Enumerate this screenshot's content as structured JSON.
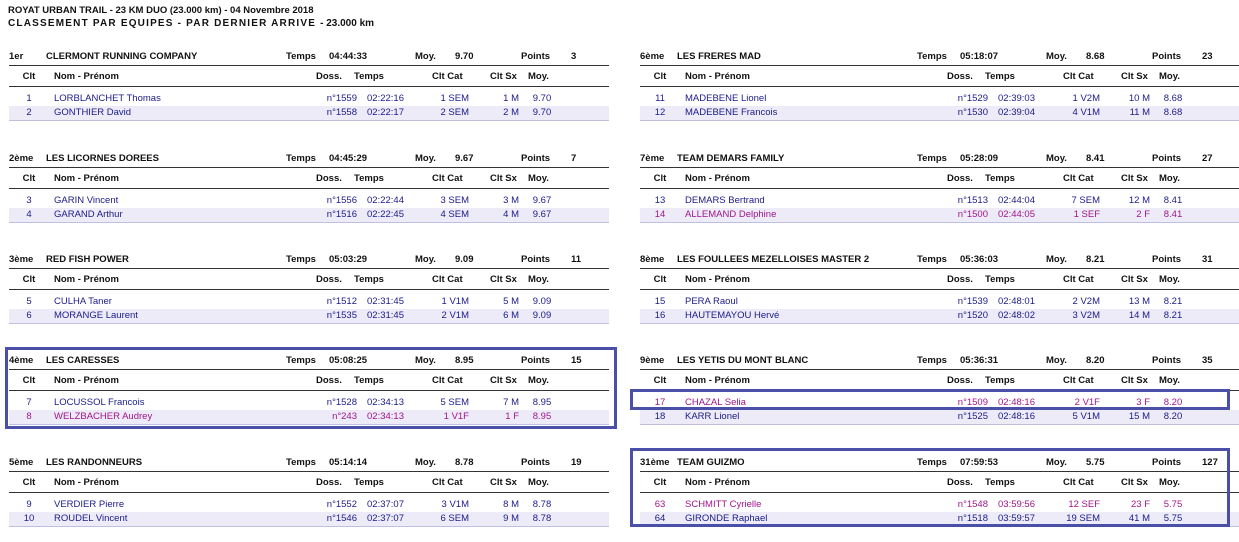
{
  "header": {
    "line1": "ROYAT URBAN TRAIL - 23 KM DUO (23.000 km) - 04 Novembre 2018",
    "line2": "CLASSEMENT PAR EQUIPES - PAR DERNIER ARRIVE",
    "line2_suffix": "- 23.000 km"
  },
  "labels": {
    "temps": "Temps",
    "moy": "Moy.",
    "points": "Points",
    "col_clt": "Clt",
    "col_nom": "Nom - Prénom",
    "col_doss": "Doss.",
    "col_temps": "Temps",
    "col_cltcat": "Clt Cat",
    "col_cltsx": "Clt Sx",
    "col_moy": "Moy."
  },
  "left_teams": [
    {
      "rank": "1er",
      "name": "CLERMONT RUNNING COMPANY",
      "time": "04:44:33",
      "avg": "9.70",
      "points": "3",
      "members": [
        {
          "clt": "1",
          "name": "LORBLANCHET Thomas",
          "doss": "n°1559",
          "time": "02:22:16",
          "cltcat": "1 SEM",
          "cltsx": "1 M",
          "moy": "9.70",
          "sex": "M"
        },
        {
          "clt": "2",
          "name": "GONTHIER David",
          "doss": "n°1558",
          "time": "02:22:17",
          "cltcat": "2 SEM",
          "cltsx": "2 M",
          "moy": "9.70",
          "sex": "M"
        }
      ]
    },
    {
      "rank": "2ème",
      "name": "LES LICORNES DOREES",
      "time": "04:45:29",
      "avg": "9.67",
      "points": "7",
      "members": [
        {
          "clt": "3",
          "name": "GARIN Vincent",
          "doss": "n°1556",
          "time": "02:22:44",
          "cltcat": "3 SEM",
          "cltsx": "3 M",
          "moy": "9.67",
          "sex": "M"
        },
        {
          "clt": "4",
          "name": "GARAND Arthur",
          "doss": "n°1516",
          "time": "02:22:45",
          "cltcat": "4 SEM",
          "cltsx": "4 M",
          "moy": "9.67",
          "sex": "M"
        }
      ]
    },
    {
      "rank": "3ème",
      "name": "RED FISH POWER",
      "time": "05:03:29",
      "avg": "9.09",
      "points": "11",
      "members": [
        {
          "clt": "5",
          "name": "CULHA Taner",
          "doss": "n°1512",
          "time": "02:31:45",
          "cltcat": "1 V1M",
          "cltsx": "5 M",
          "moy": "9.09",
          "sex": "M"
        },
        {
          "clt": "6",
          "name": "MORANGE Laurent",
          "doss": "n°1535",
          "time": "02:31:45",
          "cltcat": "2 V1M",
          "cltsx": "6 M",
          "moy": "9.09",
          "sex": "M"
        }
      ]
    },
    {
      "rank": "4ème",
      "name": "LES CARESSES",
      "time": "05:08:25",
      "avg": "8.95",
      "points": "15",
      "members": [
        {
          "clt": "7",
          "name": "LOCUSSOL Francois",
          "doss": "n°1528",
          "time": "02:34:13",
          "cltcat": "5 SEM",
          "cltsx": "7 M",
          "moy": "8.95",
          "sex": "M"
        },
        {
          "clt": "8",
          "name": "WELZBACHER Audrey",
          "doss": "n°243",
          "time": "02:34:13",
          "cltcat": "1 V1F",
          "cltsx": "1 F",
          "moy": "8.95",
          "sex": "F"
        }
      ]
    },
    {
      "rank": "5ème",
      "name": "LES RANDONNEURS",
      "time": "05:14:14",
      "avg": "8.78",
      "points": "19",
      "members": [
        {
          "clt": "9",
          "name": "VERDIER Pierre",
          "doss": "n°1552",
          "time": "02:37:07",
          "cltcat": "3 V1M",
          "cltsx": "8 M",
          "moy": "8.78",
          "sex": "M"
        },
        {
          "clt": "10",
          "name": "ROUDEL Vincent",
          "doss": "n°1546",
          "time": "02:37:07",
          "cltcat": "6 SEM",
          "cltsx": "9 M",
          "moy": "8.78",
          "sex": "M"
        }
      ]
    }
  ],
  "right_teams": [
    {
      "rank": "6ème",
      "name": "LES FRERES MAD",
      "time": "05:18:07",
      "avg": "8.68",
      "points": "23",
      "members": [
        {
          "clt": "11",
          "name": "MADEBENE Lionel",
          "doss": "n°1529",
          "time": "02:39:03",
          "cltcat": "1 V2M",
          "cltsx": "10 M",
          "moy": "8.68",
          "sex": "M"
        },
        {
          "clt": "12",
          "name": "MADEBENE Francois",
          "doss": "n°1530",
          "time": "02:39:04",
          "cltcat": "4 V1M",
          "cltsx": "11 M",
          "moy": "8.68",
          "sex": "M"
        }
      ]
    },
    {
      "rank": "7ème",
      "name": "TEAM DEMARS FAMILY",
      "time": "05:28:09",
      "avg": "8.41",
      "points": "27",
      "members": [
        {
          "clt": "13",
          "name": "DEMARS Bertrand",
          "doss": "n°1513",
          "time": "02:44:04",
          "cltcat": "7 SEM",
          "cltsx": "12 M",
          "moy": "8.41",
          "sex": "M"
        },
        {
          "clt": "14",
          "name": "ALLEMAND Delphine",
          "doss": "n°1500",
          "time": "02:44:05",
          "cltcat": "1 SEF",
          "cltsx": "2 F",
          "moy": "8.41",
          "sex": "F"
        }
      ]
    },
    {
      "rank": "8ème",
      "name": "LES FOULLEES MEZELLOISES MASTER 2",
      "time": "05:36:03",
      "avg": "8.21",
      "points": "31",
      "members": [
        {
          "clt": "15",
          "name": "PERA Raoul",
          "doss": "n°1539",
          "time": "02:48:01",
          "cltcat": "2 V2M",
          "cltsx": "13 M",
          "moy": "8.21",
          "sex": "M"
        },
        {
          "clt": "16",
          "name": "HAUTEMAYOU Hervé",
          "doss": "n°1520",
          "time": "02:48:02",
          "cltcat": "3 V2M",
          "cltsx": "14 M",
          "moy": "8.21",
          "sex": "M"
        }
      ]
    },
    {
      "rank": "9ème",
      "name": "LES YETIS DU MONT BLANC",
      "time": "05:36:31",
      "avg": "8.20",
      "points": "35",
      "members": [
        {
          "clt": "17",
          "name": "CHAZAL Selia",
          "doss": "n°1509",
          "time": "02:48:16",
          "cltcat": "2 V1F",
          "cltsx": "3 F",
          "moy": "8.20",
          "sex": "F"
        },
        {
          "clt": "18",
          "name": "KARR Lionel",
          "doss": "n°1525",
          "time": "02:48:16",
          "cltcat": "5 V1M",
          "cltsx": "15 M",
          "moy": "8.20",
          "sex": "M"
        }
      ]
    },
    {
      "rank": "31ème",
      "name": "TEAM GUIZMO",
      "time": "07:59:53",
      "avg": "5.75",
      "points": "127",
      "members": [
        {
          "clt": "63",
          "name": "SCHMITT Cyrielle",
          "doss": "n°1548",
          "time": "03:59:56",
          "cltcat": "12 SEF",
          "cltsx": "23 F",
          "moy": "5.75",
          "sex": "F"
        },
        {
          "clt": "64",
          "name": "GIRONDE Raphael",
          "doss": "n°1518",
          "time": "03:59:57",
          "cltcat": "19 SEM",
          "cltsx": "41 M",
          "moy": "5.75",
          "sex": "M"
        }
      ]
    }
  ]
}
